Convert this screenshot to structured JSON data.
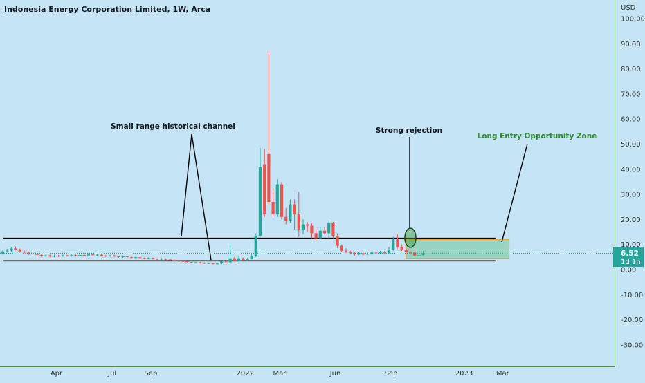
{
  "header": {
    "title": "Indonesia Energy Corporation Limited, 1W, Arca"
  },
  "currency": "USD",
  "price_badge": {
    "price": "6.52",
    "countdown": "1d 1h",
    "color": "#26a69a"
  },
  "colors": {
    "background": "#c5e4f6",
    "up": "#26a69a",
    "down": "#ef5350",
    "zone_fill": "#8fd1b8",
    "zone_border": "#f0a030",
    "annotation_green": "#2e8b2e"
  },
  "annotations": {
    "channel": "Small range historical channel",
    "rejection": "Strong rejection",
    "zone": "Long Entry Opportunity Zone"
  },
  "chart_data": {
    "type": "candlestick",
    "title": "Indonesia Energy Corporation Limited, 1W, Arca",
    "ylabel": "USD",
    "ylim": [
      -37,
      104
    ],
    "y_ticks": [
      100,
      90,
      80,
      70,
      60,
      50,
      40,
      30,
      20,
      10,
      0,
      -10,
      -20,
      -30
    ],
    "x_ticks": [
      {
        "label": "Apr",
        "t": 12.5
      },
      {
        "label": "Jul",
        "t": 25.5
      },
      {
        "label": "Sep",
        "t": 34.5
      },
      {
        "label": "2022",
        "t": 56.5
      },
      {
        "label": "Mar",
        "t": 64.5
      },
      {
        "label": "Jun",
        "t": 77.5
      },
      {
        "label": "Sep",
        "t": 90.5
      },
      {
        "label": "2023",
        "t": 107.5
      },
      {
        "label": "Mar",
        "t": 116.5
      }
    ],
    "last_price": 6.52,
    "channel": {
      "upper": 12.5,
      "lower": 3.5,
      "t_start": 0,
      "t_end": 115
    },
    "zone": {
      "top": 12,
      "bottom": 4.5,
      "t_start": 94,
      "t_end": 118
    },
    "candles": [
      [
        0,
        6.4,
        7.2,
        7.8,
        6.0
      ],
      [
        1,
        7.2,
        7.6,
        8.2,
        6.8
      ],
      [
        2,
        7.6,
        8.4,
        9.0,
        7.2
      ],
      [
        3,
        8.4,
        8.0,
        9.2,
        7.6
      ],
      [
        4,
        8.0,
        7.2,
        8.4,
        6.8
      ],
      [
        5,
        7.2,
        6.8,
        7.6,
        6.4
      ],
      [
        6,
        6.8,
        6.2,
        7.2,
        5.8
      ],
      [
        7,
        6.2,
        6.4,
        7.0,
        5.8
      ],
      [
        8,
        6.4,
        5.8,
        6.8,
        5.4
      ],
      [
        9,
        5.8,
        5.4,
        6.2,
        5.0
      ],
      [
        10,
        5.4,
        5.6,
        6.0,
        5.0
      ],
      [
        11,
        5.6,
        5.2,
        6.0,
        4.9
      ],
      [
        12,
        5.2,
        5.5,
        5.9,
        4.9
      ],
      [
        13,
        5.5,
        5.3,
        5.8,
        5.0
      ],
      [
        14,
        5.3,
        5.6,
        6.0,
        5.0
      ],
      [
        15,
        5.6,
        5.4,
        5.9,
        5.1
      ],
      [
        16,
        5.4,
        5.7,
        6.1,
        5.1
      ],
      [
        17,
        5.7,
        5.5,
        6.0,
        5.2
      ],
      [
        18,
        5.5,
        5.8,
        6.2,
        5.2
      ],
      [
        19,
        5.8,
        5.6,
        6.1,
        5.3
      ],
      [
        20,
        5.6,
        6.0,
        6.6,
        5.3
      ],
      [
        21,
        6.0,
        5.7,
        6.3,
        5.4
      ],
      [
        22,
        5.7,
        5.9,
        6.3,
        5.4
      ],
      [
        23,
        5.9,
        5.5,
        6.2,
        5.2
      ],
      [
        24,
        5.5,
        5.3,
        5.8,
        5.0
      ],
      [
        25,
        5.3,
        5.6,
        5.9,
        5.0
      ],
      [
        26,
        5.6,
        5.2,
        5.9,
        4.9
      ],
      [
        27,
        5.2,
        5.0,
        5.5,
        4.7
      ],
      [
        28,
        5.0,
        5.2,
        5.6,
        4.7
      ],
      [
        29,
        5.2,
        4.9,
        5.4,
        4.6
      ],
      [
        30,
        4.9,
        4.7,
        5.2,
        4.4
      ],
      [
        31,
        4.7,
        4.9,
        5.2,
        4.4
      ],
      [
        32,
        4.9,
        4.6,
        5.1,
        4.3
      ],
      [
        33,
        4.6,
        4.4,
        4.8,
        4.1
      ],
      [
        34,
        4.4,
        4.6,
        4.9,
        4.2
      ],
      [
        35,
        4.6,
        4.3,
        4.8,
        4.0
      ],
      [
        36,
        4.3,
        4.1,
        4.5,
        3.8
      ],
      [
        37,
        4.1,
        4.3,
        4.6,
        3.8
      ],
      [
        38,
        4.3,
        4.0,
        4.5,
        3.7
      ],
      [
        39,
        4.0,
        3.8,
        4.2,
        3.5
      ],
      [
        40,
        3.8,
        3.6,
        4.0,
        3.3
      ],
      [
        41,
        3.6,
        3.4,
        3.8,
        3.1
      ],
      [
        42,
        3.4,
        3.3,
        3.6,
        3.0
      ],
      [
        43,
        3.3,
        3.0,
        3.5,
        2.8
      ],
      [
        44,
        3.0,
        2.8,
        3.2,
        2.6
      ],
      [
        45,
        2.8,
        2.9,
        3.1,
        2.5
      ],
      [
        46,
        2.9,
        2.7,
        3.1,
        2.4
      ],
      [
        47,
        2.7,
        2.5,
        2.9,
        2.3
      ],
      [
        48,
        2.5,
        2.6,
        2.8,
        2.2
      ],
      [
        49,
        2.6,
        2.3,
        2.7,
        2.0
      ],
      [
        50,
        2.3,
        2.4,
        2.7,
        2.0
      ],
      [
        51,
        2.4,
        3.2,
        3.5,
        2.2
      ],
      [
        52,
        3.2,
        2.9,
        3.6,
        2.6
      ],
      [
        53,
        2.9,
        4.5,
        9.5,
        2.8
      ],
      [
        54,
        4.5,
        3.5,
        5.0,
        3.2
      ],
      [
        55,
        3.5,
        4.5,
        5.5,
        3.3
      ],
      [
        56,
        4.5,
        3.8,
        4.8,
        3.5
      ],
      [
        57,
        3.8,
        4.2,
        4.6,
        3.5
      ],
      [
        58,
        4.2,
        5.5,
        6.0,
        4.0
      ],
      [
        59,
        5.5,
        13.5,
        14.5,
        5.0
      ],
      [
        60,
        13.5,
        41.0,
        48.5,
        13.0
      ],
      [
        61,
        42.0,
        22.0,
        48.0,
        21.0
      ],
      [
        62,
        46.0,
        27.0,
        87.0,
        26.0
      ],
      [
        63,
        27.0,
        22.0,
        32.0,
        21.0
      ],
      [
        64,
        22.0,
        34.0,
        36.0,
        21.0
      ],
      [
        65,
        34.0,
        21.0,
        35.0,
        20.0
      ],
      [
        66,
        21.0,
        19.5,
        24.5,
        18.0
      ],
      [
        67,
        19.5,
        26.0,
        28.0,
        18.5
      ],
      [
        68,
        26.0,
        22.0,
        28.0,
        16.0
      ],
      [
        69,
        22.0,
        16.0,
        31.0,
        13.0
      ],
      [
        70,
        16.0,
        18.0,
        20.0,
        14.0
      ],
      [
        71,
        18.0,
        17.5,
        19.0,
        15.0
      ],
      [
        72,
        17.5,
        14.5,
        18.5,
        12.5
      ],
      [
        73,
        14.5,
        12.5,
        16.0,
        11.5
      ],
      [
        74,
        12.5,
        15.5,
        17.0,
        12.0
      ],
      [
        75,
        15.5,
        14.5,
        17.0,
        14.0
      ],
      [
        76,
        14.5,
        18.5,
        19.5,
        12.5
      ],
      [
        77,
        18.5,
        13.5,
        19.0,
        12.5
      ],
      [
        78,
        13.5,
        9.5,
        14.5,
        8.5
      ],
      [
        79,
        9.5,
        7.5,
        10.0,
        7.0
      ],
      [
        80,
        7.5,
        7.0,
        8.5,
        6.5
      ],
      [
        81,
        7.0,
        6.5,
        7.5,
        6.0
      ],
      [
        82,
        6.5,
        6.0,
        7.0,
        5.5
      ],
      [
        83,
        6.0,
        6.5,
        7.0,
        5.7
      ],
      [
        84,
        6.5,
        6.0,
        7.2,
        5.7
      ],
      [
        85,
        6.0,
        6.3,
        6.8,
        5.8
      ],
      [
        86,
        6.3,
        6.8,
        7.2,
        6.0
      ],
      [
        87,
        6.8,
        6.5,
        7.2,
        6.2
      ],
      [
        88,
        6.5,
        7.0,
        7.5,
        6.2
      ],
      [
        89,
        7.0,
        6.5,
        7.5,
        6.0
      ],
      [
        90,
        6.5,
        8.0,
        9.0,
        6.5
      ],
      [
        91,
        8.0,
        12.0,
        13.0,
        7.5
      ],
      [
        92,
        12.0,
        9.0,
        14.0,
        8.5
      ],
      [
        93,
        9.0,
        8.0,
        10.0,
        7.5
      ],
      [
        94,
        8.0,
        7.0,
        8.5,
        6.5
      ],
      [
        95,
        7.0,
        6.8,
        7.5,
        6.0
      ],
      [
        96,
        6.8,
        5.6,
        7.2,
        5.2
      ],
      [
        97,
        5.6,
        5.8,
        6.4,
        5.2
      ],
      [
        98,
        5.8,
        6.52,
        7.4,
        5.5
      ]
    ]
  }
}
